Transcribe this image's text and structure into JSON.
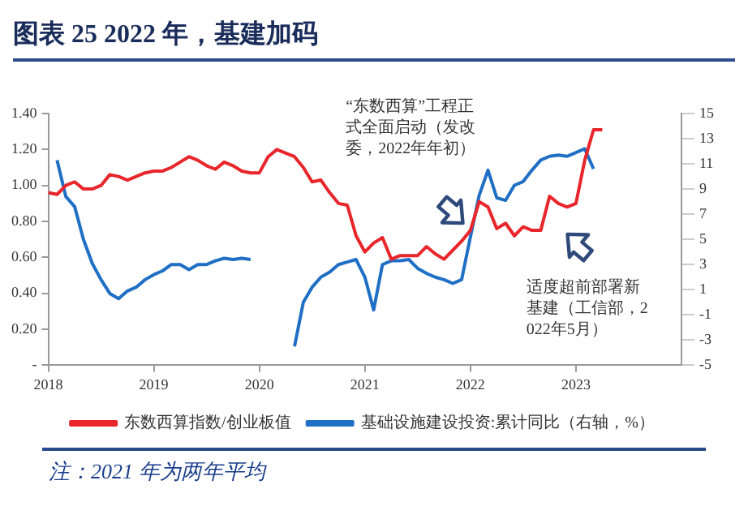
{
  "chart_data": {
    "type": "line",
    "title": "图表 25 2022 年，基建加码",
    "x": [
      "2018-01",
      "2018-02",
      "2018-03",
      "2018-04",
      "2018-05",
      "2018-06",
      "2018-07",
      "2018-08",
      "2018-09",
      "2018-10",
      "2018-11",
      "2018-12",
      "2019-01",
      "2019-02",
      "2019-03",
      "2019-04",
      "2019-05",
      "2019-06",
      "2019-07",
      "2019-08",
      "2019-09",
      "2019-10",
      "2019-11",
      "2019-12",
      "2020-01",
      "2020-02",
      "2020-03",
      "2020-04",
      "2020-05",
      "2020-06",
      "2020-07",
      "2020-08",
      "2020-09",
      "2020-10",
      "2020-11",
      "2020-12",
      "2021-01",
      "2021-02",
      "2021-03",
      "2021-04",
      "2021-05",
      "2021-06",
      "2021-07",
      "2021-08",
      "2021-09",
      "2021-10",
      "2021-11",
      "2021-12",
      "2022-01",
      "2022-02",
      "2022-03",
      "2022-04",
      "2022-05",
      "2022-06",
      "2022-07",
      "2022-08",
      "2022-09",
      "2022-10",
      "2022-11",
      "2022-12",
      "2023-01",
      "2023-02",
      "2023-03",
      "2023-04"
    ],
    "series": [
      {
        "name": "东数西算指数/创业板值",
        "color": "#e8262b",
        "values": [
          0.96,
          0.95,
          1.0,
          1.02,
          0.98,
          0.98,
          1.0,
          1.06,
          1.05,
          1.03,
          1.05,
          1.07,
          1.08,
          1.08,
          1.1,
          1.13,
          1.16,
          1.14,
          1.11,
          1.09,
          1.13,
          1.11,
          1.08,
          1.07,
          1.07,
          1.16,
          1.2,
          1.18,
          1.16,
          1.1,
          1.02,
          1.03,
          0.96,
          0.9,
          0.89,
          0.72,
          0.63,
          0.68,
          0.71,
          0.59,
          0.61,
          0.61,
          0.61,
          0.66,
          0.62,
          0.59,
          0.64,
          0.69,
          0.75,
          0.91,
          0.88,
          0.76,
          0.79,
          0.72,
          0.77,
          0.75,
          0.75,
          0.94,
          0.9,
          0.88,
          0.9,
          1.14,
          1.31,
          1.31
        ]
      },
      {
        "name": "基础设施建设投资:累计同比（右轴，%）",
        "color": "#1f6fc5",
        "axis": "y2",
        "values": [
          null,
          11.3,
          8.4,
          7.6,
          5.0,
          3.1,
          1.8,
          0.7,
          0.3,
          0.9,
          1.2,
          1.8,
          2.2,
          2.5,
          3.0,
          3.0,
          2.6,
          3.0,
          3.0,
          3.3,
          3.5,
          3.4,
          3.5,
          3.4,
          null,
          null,
          null,
          null,
          -3.5,
          0.0,
          1.2,
          2.0,
          2.4,
          3.0,
          3.2,
          3.4,
          2.0,
          -0.6,
          3.0,
          3.3,
          3.3,
          3.4,
          2.7,
          2.3,
          2.0,
          1.8,
          1.5,
          1.8,
          5.2,
          8.5,
          10.5,
          8.3,
          8.1,
          9.3,
          9.6,
          10.5,
          11.3,
          11.6,
          11.7,
          11.6,
          11.9,
          12.2,
          10.6,
          null
        ]
      }
    ],
    "xlim": [
      "2018-01",
      "2024-01"
    ],
    "xticks": [
      {
        "value": "2018-01",
        "label": "2018"
      },
      {
        "value": "2019-01",
        "label": "2019"
      },
      {
        "value": "2020-01",
        "label": "2020"
      },
      {
        "value": "2021-01",
        "label": "2021"
      },
      {
        "value": "2022-01",
        "label": "2022"
      },
      {
        "value": "2023-01",
        "label": "2023"
      }
    ],
    "ylim": [
      0,
      1.4
    ],
    "yticks": [
      {
        "value": 0,
        "label": "-"
      },
      {
        "value": 0.2,
        "label": "0.20"
      },
      {
        "value": 0.4,
        "label": "0.40"
      },
      {
        "value": 0.6,
        "label": "0.60"
      },
      {
        "value": 0.8,
        "label": "0.80"
      },
      {
        "value": 1.0,
        "label": "1.00"
      },
      {
        "value": 1.2,
        "label": "1.20"
      },
      {
        "value": 1.4,
        "label": "1.40"
      }
    ],
    "y2lim": [
      -5,
      15
    ],
    "y2ticks": [
      -5,
      -3,
      -1,
      1,
      3,
      5,
      7,
      9,
      11,
      13,
      15
    ],
    "grid": false,
    "legend": "bottom",
    "marker": "none",
    "line_style": "solid",
    "annotations": [
      "“东数西算”工程正式全面启动（发改委，2022年年初）",
      "适度超前部署新基建（工信部，2022年5月）",
      "注：2021 年为两年平均"
    ]
  }
}
